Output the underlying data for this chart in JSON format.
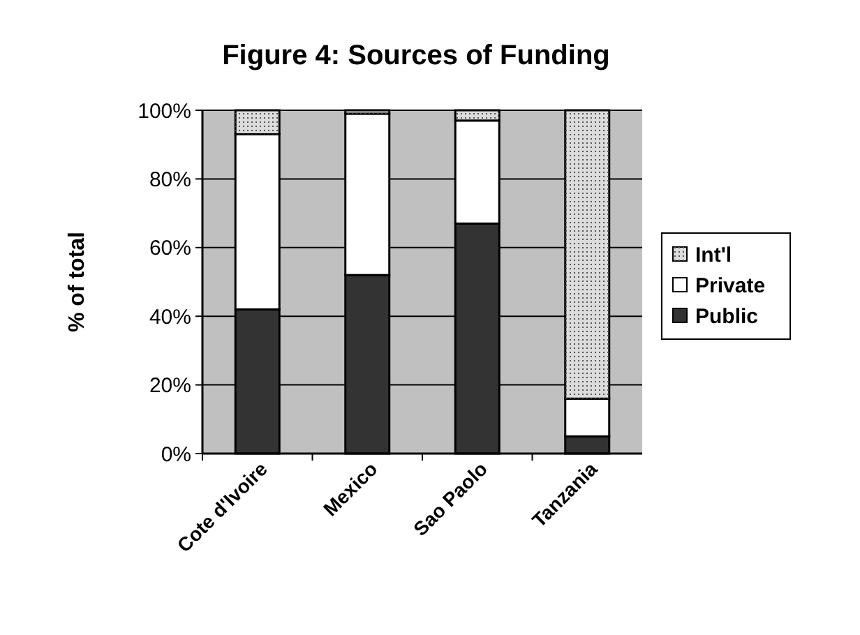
{
  "chart_data": {
    "type": "bar",
    "title": "Figure 4: Sources of Funding",
    "ylabel": "% of total",
    "categories": [
      "Cote d'Ivoire",
      "Mexico",
      "Sao Paolo",
      "Tanzania"
    ],
    "series": [
      {
        "name": "Public",
        "color": "#333333",
        "values": [
          42,
          52,
          67,
          5
        ]
      },
      {
        "name": "Private",
        "color": "#ffffff",
        "values": [
          51,
          47,
          30,
          11
        ]
      },
      {
        "name": "Int'l",
        "color": "#dcdcdc",
        "values": [
          7,
          1,
          3,
          84
        ]
      }
    ],
    "stacked": true,
    "ylim": [
      0,
      100
    ],
    "yticks": [
      {
        "value": 0,
        "label": "0%"
      },
      {
        "value": 20,
        "label": "20%"
      },
      {
        "value": 40,
        "label": "40%"
      },
      {
        "value": 60,
        "label": "60%"
      },
      {
        "value": 80,
        "label": "80%"
      },
      {
        "value": 100,
        "label": "100%"
      }
    ],
    "grid": "y",
    "legend": "right"
  }
}
